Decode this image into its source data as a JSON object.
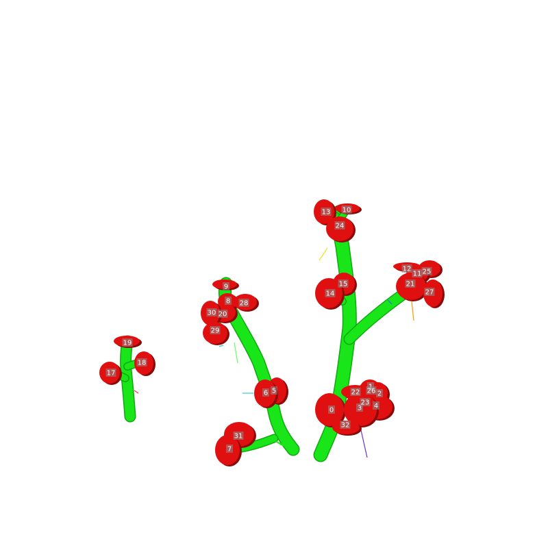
{
  "colors": {
    "background": "#ffffff",
    "stem": "#19e619",
    "stem_shadow": "#0fa80f",
    "disc": "#e01010",
    "disc_dark": "#8a0a0a",
    "label_box": "#8c8c8c"
  },
  "markers": [
    {
      "id": "0",
      "label": "0"
    },
    {
      "id": "1",
      "label": "1"
    },
    {
      "id": "2",
      "label": "2"
    },
    {
      "id": "3",
      "label": "3"
    },
    {
      "id": "4",
      "label": "4"
    },
    {
      "id": "5",
      "label": "5"
    },
    {
      "id": "6",
      "label": "6"
    },
    {
      "id": "7",
      "label": "7"
    },
    {
      "id": "8",
      "label": "8"
    },
    {
      "id": "9",
      "label": "9"
    },
    {
      "id": "10",
      "label": "10"
    },
    {
      "id": "11",
      "label": "11"
    },
    {
      "id": "12",
      "label": "12"
    },
    {
      "id": "13",
      "label": "13"
    },
    {
      "id": "14",
      "label": "14"
    },
    {
      "id": "15",
      "label": "15"
    },
    {
      "id": "17",
      "label": "17"
    },
    {
      "id": "18",
      "label": "18"
    },
    {
      "id": "19",
      "label": "19"
    },
    {
      "id": "20",
      "label": "20"
    },
    {
      "id": "21",
      "label": "21"
    },
    {
      "id": "22",
      "label": "22"
    },
    {
      "id": "23",
      "label": "23"
    },
    {
      "id": "24",
      "label": "24"
    },
    {
      "id": "25",
      "label": "25"
    },
    {
      "id": "26",
      "label": "26"
    },
    {
      "id": "27",
      "label": "27"
    },
    {
      "id": "28",
      "label": "28"
    },
    {
      "id": "29",
      "label": "29"
    },
    {
      "id": "30",
      "label": "30"
    },
    {
      "id": "31",
      "label": "31"
    },
    {
      "id": "32",
      "label": "32"
    }
  ]
}
